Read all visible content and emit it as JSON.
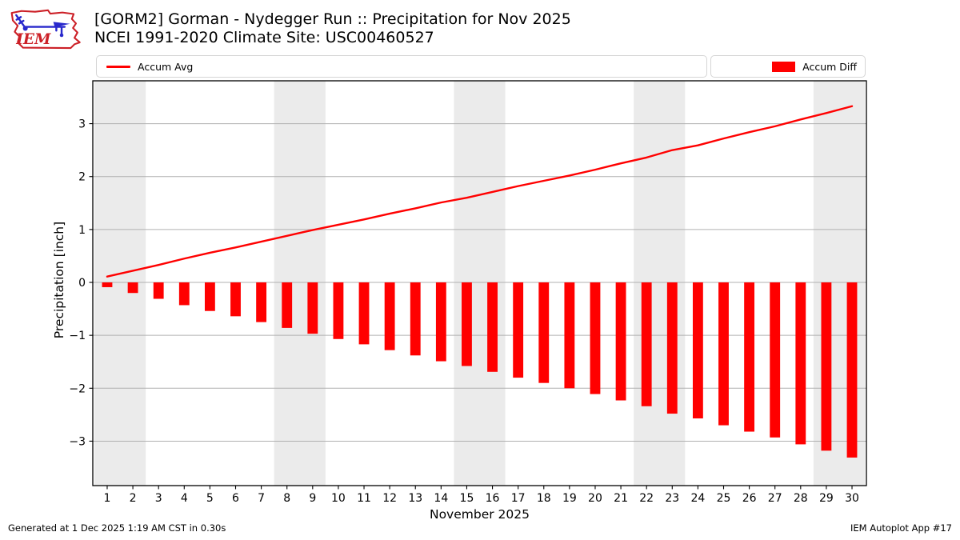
{
  "header": {
    "title_line1": "[GORM2] Gorman - Nydegger Run :: Precipitation for Nov 2025",
    "title_line2": "NCEI 1991-2020 Climate Site: USC00460527",
    "logo_text": "IEM"
  },
  "legend": {
    "line_label": "Accum Avg",
    "bar_label": "Accum Diff"
  },
  "footer": {
    "left": "Generated at 1 Dec 2025 1:19 AM CST in 0.30s",
    "right": "IEM Autoplot App #17"
  },
  "colors": {
    "accent_red": "#ff0000",
    "grid": "#b0b0b0",
    "band": "#ebebeb",
    "border": "#000000",
    "logo_red": "#cc2027",
    "logo_blue": "#2929cc"
  },
  "chart_data": {
    "type": "bar",
    "title": "[GORM2] Gorman - Nydegger Run :: Precipitation for Nov 2025",
    "subtitle": "NCEI 1991-2020 Climate Site: USC00460527",
    "xlabel": "November 2025",
    "ylabel": "Precipitation [inch]",
    "x": [
      1,
      2,
      3,
      4,
      5,
      6,
      7,
      8,
      9,
      10,
      11,
      12,
      13,
      14,
      15,
      16,
      17,
      18,
      19,
      20,
      21,
      22,
      23,
      24,
      25,
      26,
      27,
      28,
      29,
      30
    ],
    "series": [
      {
        "name": "Accum Avg",
        "type": "line",
        "color": "#ff0000",
        "values": [
          0.11,
          0.22,
          0.33,
          0.45,
          0.56,
          0.66,
          0.77,
          0.88,
          0.99,
          1.09,
          1.19,
          1.3,
          1.4,
          1.51,
          1.6,
          1.71,
          1.82,
          1.92,
          2.02,
          2.13,
          2.25,
          2.36,
          2.5,
          2.59,
          2.72,
          2.84,
          2.95,
          3.08,
          3.2,
          3.33
        ]
      },
      {
        "name": "Accum Diff",
        "type": "bar",
        "color": "#ff0000",
        "values": [
          -0.09,
          -0.2,
          -0.31,
          -0.43,
          -0.54,
          -0.64,
          -0.75,
          -0.86,
          -0.97,
          -1.07,
          -1.17,
          -1.28,
          -1.38,
          -1.49,
          -1.58,
          -1.69,
          -1.8,
          -1.9,
          -2.0,
          -2.11,
          -2.23,
          -2.34,
          -2.48,
          -2.57,
          -2.7,
          -2.82,
          -2.93,
          -3.06,
          -3.18,
          -3.31
        ]
      }
    ],
    "yticks": [
      -3,
      -2,
      -1,
      0,
      1,
      2,
      3
    ],
    "ylim": [
      -3.84,
      3.81
    ],
    "xlim": [
      0.44,
      30.56
    ],
    "bar_width": 0.4,
    "grid": true,
    "legend_position": "top",
    "weekend_bands": [
      [
        0.5,
        2.5
      ],
      [
        7.5,
        9.5
      ],
      [
        14.5,
        16.5
      ],
      [
        21.5,
        23.5
      ],
      [
        28.5,
        30.5
      ]
    ]
  }
}
